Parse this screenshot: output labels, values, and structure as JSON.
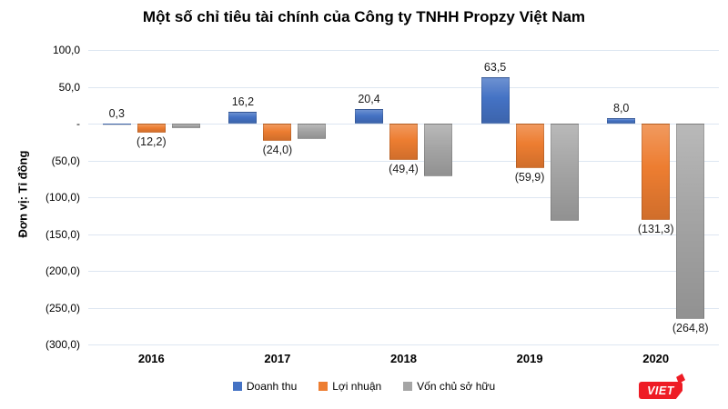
{
  "chart_data": {
    "type": "bar",
    "title": "Một số chỉ tiêu tài chính của Công ty TNHH Propzy Việt Nam",
    "ylabel": "Đơn vị: Tỉ đồng",
    "xlabel": "",
    "categories": [
      "2016",
      "2017",
      "2018",
      "2019",
      "2020"
    ],
    "series": [
      {
        "name": "Doanh thu",
        "color": "#4472C4",
        "values": [
          0.3,
          16.2,
          20.4,
          63.5,
          8.0
        ],
        "labels": [
          "0,3",
          "16,2",
          "20,4",
          "63,5",
          "8,0"
        ]
      },
      {
        "name": "Lợi nhuận",
        "color": "#ED7D31",
        "values": [
          -12.2,
          -24.0,
          -49.4,
          -59.9,
          -131.3
        ],
        "labels": [
          "(12,2)",
          "(24,0)",
          "(49,4)",
          "(59,9)",
          "(131,3)"
        ]
      },
      {
        "name": "Vốn chủ sở hữu",
        "color": "#A5A5A5",
        "values": [
          -6,
          -21,
          -71,
          -132,
          -264.8
        ],
        "labels": [
          null,
          null,
          null,
          null,
          "(264,8)"
        ]
      }
    ],
    "ylim": [
      -300,
      100
    ],
    "y_ticks": [
      {
        "value": 100,
        "label": "100,0"
      },
      {
        "value": 50,
        "label": "50,0"
      },
      {
        "value": 0,
        "label": "-"
      },
      {
        "value": -50,
        "label": "(50,0)"
      },
      {
        "value": -100,
        "label": "(100,0)"
      },
      {
        "value": -150,
        "label": "(150,0)"
      },
      {
        "value": -200,
        "label": "(200,0)"
      },
      {
        "value": -250,
        "label": "(250,0)"
      },
      {
        "value": -300,
        "label": "(300,0)"
      }
    ],
    "grid": true,
    "legend_position": "bottom"
  },
  "branding": {
    "logo_text": "VIET",
    "logo_color": "#EE1C25"
  }
}
